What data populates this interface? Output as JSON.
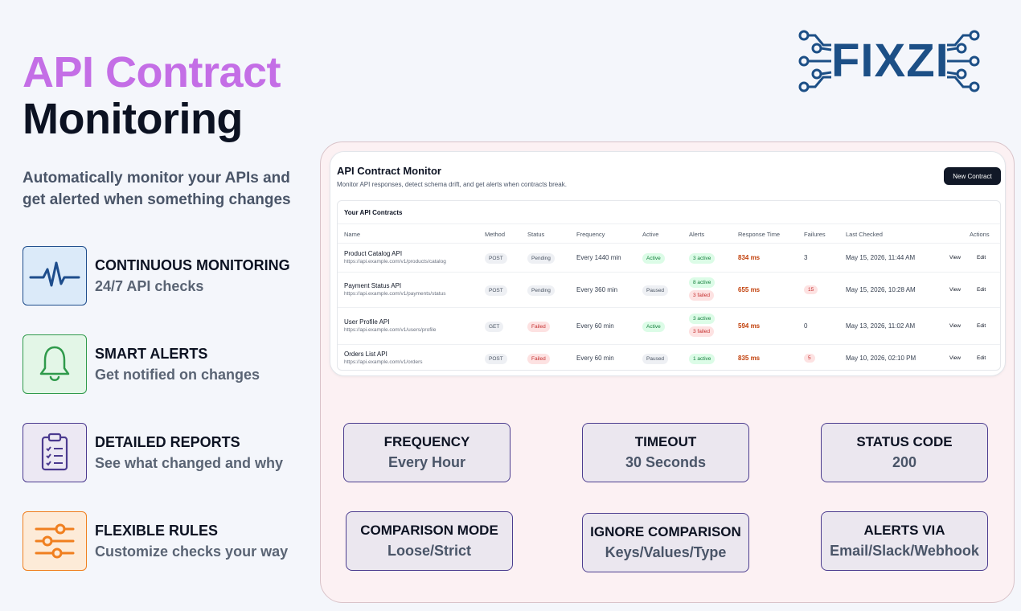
{
  "hero": {
    "line1": "API Contract",
    "line2": "Monitoring",
    "subtitle": "Automatically monitor your APIs and get alerted when something changes"
  },
  "logo": {
    "text": "FIXZI",
    "color": "#1c4f86"
  },
  "features": [
    {
      "title": "CONTINUOUS MONITORING",
      "desc": "24/7 API checks",
      "icon": "heartbeat-icon",
      "color": "#1e4d8c",
      "bg": "#dbeaf9"
    },
    {
      "title": "SMART ALERTS",
      "desc": "Get notified on changes",
      "icon": "bell-icon",
      "color": "#2f9a4b",
      "bg": "#e3f6e7"
    },
    {
      "title": "DETAILED REPORTS",
      "desc": "See what changed and why",
      "icon": "clipboard-checklist-icon",
      "color": "#4b3a8f",
      "bg": "#ece8f3"
    },
    {
      "title": "FLEXIBLE RULES",
      "desc": "Customize checks your way",
      "icon": "sliders-icon",
      "color": "#f07f1f",
      "bg": "#fdebd8"
    }
  ],
  "app": {
    "title": "API Contract Monitor",
    "subtitle": "Monitor API responses, detect schema drift, and get alerts when contracts break.",
    "new_button": "New Contract",
    "table_title": "Your API Contracts",
    "columns": [
      "Name",
      "Method",
      "Status",
      "Frequency",
      "Active",
      "Alerts",
      "Response Time",
      "Failures",
      "Last Checked",
      "Actions"
    ],
    "rows": [
      {
        "name": "Product Catalog API",
        "url": "https://api.example.com/v1/products/catalog",
        "method": "POST",
        "status": "Pending",
        "frequency": "Every 1440 min",
        "active": "Active",
        "alerts": [
          "3 active"
        ],
        "response": "834 ms",
        "failures": "3",
        "last_checked": "May 15, 2026, 11:44 AM",
        "view": "View",
        "edit": "Edit"
      },
      {
        "name": "Payment Status API",
        "url": "https://api.example.com/v1/payments/status",
        "method": "POST",
        "status": "Pending",
        "frequency": "Every 360 min",
        "active": "Paused",
        "alerts": [
          "8 active",
          "3 failed"
        ],
        "response": "655 ms",
        "failures": "15",
        "last_checked": "May 15, 2026, 10:28 AM",
        "view": "View",
        "edit": "Edit"
      },
      {
        "name": "User Profile API",
        "url": "https://api.example.com/v1/users/profile",
        "method": "GET",
        "status": "Failed",
        "frequency": "Every 60 min",
        "active": "Active",
        "alerts": [
          "3 active",
          "3 failed"
        ],
        "response": "594 ms",
        "failures": "0",
        "last_checked": "May 13, 2026, 11:02 AM",
        "view": "View",
        "edit": "Edit"
      },
      {
        "name": "Orders List API",
        "url": "https://api.example.com/v1/orders",
        "method": "POST",
        "status": "Failed",
        "frequency": "Every 60 min",
        "active": "Paused",
        "alerts": [
          "1 active"
        ],
        "response": "835 ms",
        "failures": "5",
        "last_checked": "May 10, 2026, 02:10 PM",
        "view": "View",
        "edit": "Edit"
      }
    ]
  },
  "options": [
    {
      "title": "FREQUENCY",
      "value": "Every Hour"
    },
    {
      "title": "TIMEOUT",
      "value": "30 Seconds"
    },
    {
      "title": "STATUS CODE",
      "value": "200"
    },
    {
      "title": "COMPARISON MODE",
      "value": "Loose/Strict"
    },
    {
      "title": "IGNORE COMPARISON",
      "value": "Keys/Values/Type"
    },
    {
      "title": "ALERTS VIA",
      "value": "Email/Slack/Webhook"
    }
  ]
}
